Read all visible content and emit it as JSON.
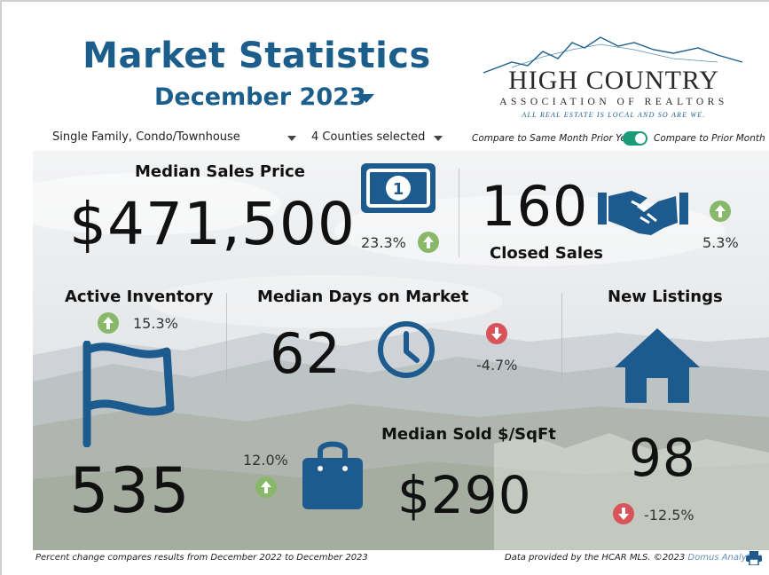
{
  "header": {
    "title": "Market Statistics",
    "month": "December 2023"
  },
  "logo": {
    "line1": "HIGH COUNTRY",
    "line2": "ASSOCIATION OF REALTORS",
    "tagline": "ALL REAL ESTATE IS LOCAL AND SO ARE WE."
  },
  "filters": {
    "property_type": "Single Family, Condo/Townhouse",
    "counties": "4 Counties selected",
    "compare_left": "Compare to Same Month Prior Year",
    "compare_right": "Compare to Prior Month",
    "toggle_on": true
  },
  "metrics": {
    "median_sales_price": {
      "label": "Median Sales Price",
      "value": "$471,500",
      "change": "23.3%",
      "direction": "up"
    },
    "closed_sales": {
      "label": "Closed Sales",
      "value": "160",
      "change": "5.3%",
      "direction": "up"
    },
    "active_inventory": {
      "label": "Active Inventory",
      "value": "535",
      "change": "15.3%",
      "direction": "up"
    },
    "median_days_on_market": {
      "label": "Median Days on Market",
      "value": "62",
      "change": "-4.7%",
      "direction": "down"
    },
    "new_listings": {
      "label": "New Listings",
      "value": "98",
      "change": "-12.5%",
      "direction": "down"
    },
    "median_sold_sqft": {
      "label": "Median Sold $/SqFt",
      "value": "$290",
      "change": "12.0%",
      "direction": "up"
    }
  },
  "footer": {
    "note": "Percent change compares results from December 2022 to December 2023",
    "credit": "Data provided by the HCAR MLS. ©2023 ",
    "credit_link": "Domus Analytics"
  },
  "colors": {
    "brand_blue": "#1b5e8c",
    "icon_blue": "#1d5b8f",
    "up_green": "#8ab86a",
    "down_red": "#d8535a",
    "toggle_green": "#1a9b7a"
  },
  "icons": [
    "money-icon",
    "handshake-icon",
    "flag-icon",
    "clock-icon",
    "house-icon",
    "shopping-bag-icon",
    "print-icon",
    "arrow-up-icon",
    "arrow-down-icon"
  ]
}
